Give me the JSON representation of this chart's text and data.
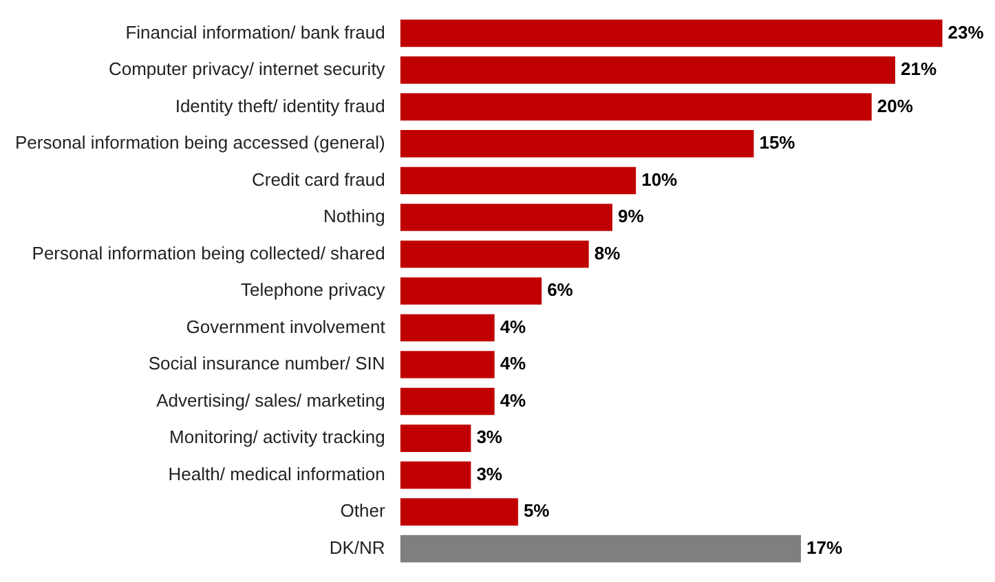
{
  "chart_data": {
    "type": "bar",
    "orientation": "horizontal",
    "categories": [
      "Financial information/ bank fraud",
      "Computer privacy/ internet security",
      "Identity theft/ identity fraud",
      "Personal information being accessed (general)",
      "Credit card fraud",
      "Nothing",
      "Personal information being collected/ shared",
      "Telephone privacy",
      "Government involvement",
      "Social insurance number/ SIN",
      "Advertising/ sales/ marketing",
      "Monitoring/ activity tracking",
      "Health/ medical information",
      "Other",
      "DK/NR"
    ],
    "values": [
      23,
      21,
      20,
      15,
      10,
      9,
      8,
      6,
      4,
      4,
      4,
      3,
      3,
      5,
      17
    ],
    "colors": [
      "#c00000",
      "#c00000",
      "#c00000",
      "#c00000",
      "#c00000",
      "#c00000",
      "#c00000",
      "#c00000",
      "#c00000",
      "#c00000",
      "#c00000",
      "#c00000",
      "#c00000",
      "#c00000",
      "#7f7f7f"
    ],
    "value_labels": [
      "23%",
      "21%",
      "20%",
      "15%",
      "10%",
      "9%",
      "8%",
      "6%",
      "4%",
      "4%",
      "4%",
      "3%",
      "3%",
      "5%",
      "17%"
    ],
    "grid": false,
    "legend": false,
    "tick_labels": "y"
  }
}
